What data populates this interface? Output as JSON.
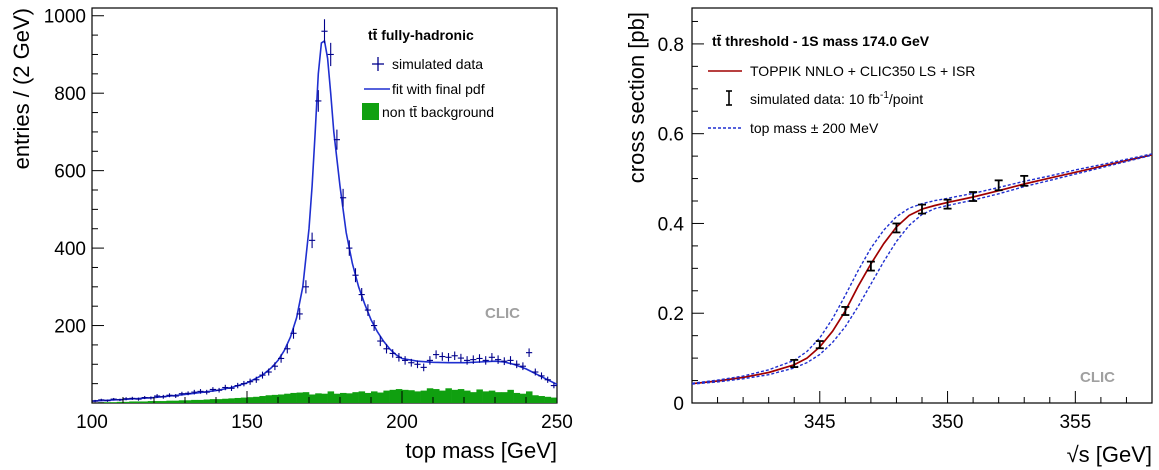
{
  "chart_data": [
    {
      "type": "histogram-fit",
      "title": "tt̄ fully-hadronic",
      "xlabel": "top mass [GeV]",
      "ylabel": "entries / (2 GeV)",
      "xlim": [
        100,
        250
      ],
      "ylim": [
        0,
        1020
      ],
      "xticks": [
        100,
        150,
        200,
        250
      ],
      "yticks": [
        200,
        400,
        600,
        800,
        1000
      ],
      "watermark": "CLIC",
      "legend": {
        "placement": "top-right",
        "entries": [
          {
            "label": "simulated data",
            "style": "marker",
            "color": "#00008b"
          },
          {
            "label": "fit with final pdf",
            "style": "line",
            "color": "#1f2fd0"
          },
          {
            "label": "non tt̄ background",
            "style": "fill",
            "color": "#10a010"
          }
        ]
      },
      "series": [
        {
          "name": "simulated data",
          "kind": "points",
          "color": "#00008b",
          "x": [
            101,
            103,
            105,
            107,
            109,
            111,
            113,
            115,
            117,
            119,
            121,
            123,
            125,
            127,
            129,
            131,
            133,
            135,
            137,
            139,
            141,
            143,
            145,
            147,
            149,
            151,
            153,
            155,
            157,
            159,
            161,
            163,
            165,
            167,
            169,
            171,
            173,
            175,
            177,
            179,
            181,
            183,
            185,
            187,
            189,
            191,
            193,
            195,
            197,
            199,
            201,
            203,
            205,
            207,
            209,
            211,
            213,
            215,
            217,
            219,
            221,
            223,
            225,
            227,
            229,
            231,
            233,
            235,
            237,
            239,
            241,
            243,
            245,
            247,
            249
          ],
          "y": [
            5,
            8,
            6,
            10,
            8,
            11,
            12,
            10,
            14,
            13,
            18,
            16,
            20,
            18,
            24,
            25,
            28,
            30,
            28,
            35,
            33,
            40,
            38,
            45,
            50,
            55,
            60,
            72,
            80,
            95,
            115,
            140,
            180,
            230,
            300,
            420,
            780,
            960,
            900,
            680,
            530,
            400,
            330,
            280,
            240,
            200,
            160,
            140,
            128,
            118,
            110,
            104,
            100,
            92,
            110,
            125,
            120,
            118,
            122,
            116,
            110,
            112,
            115,
            110,
            118,
            112,
            108,
            110,
            100,
            95,
            130,
            80,
            70,
            60,
            45
          ],
          "yerr": [
            3,
            3,
            3,
            3,
            3,
            4,
            4,
            4,
            4,
            4,
            5,
            5,
            5,
            5,
            5,
            5,
            6,
            6,
            6,
            6,
            6,
            7,
            7,
            7,
            7,
            8,
            8,
            9,
            9,
            10,
            11,
            12,
            14,
            15,
            17,
            20,
            28,
            31,
            30,
            26,
            23,
            20,
            18,
            17,
            15,
            14,
            13,
            12,
            11,
            11,
            11,
            10,
            10,
            10,
            11,
            11,
            11,
            11,
            11,
            11,
            11,
            11,
            11,
            11,
            11,
            11,
            10,
            11,
            10,
            10,
            11,
            9,
            9,
            8,
            7
          ]
        },
        {
          "name": "fit with final pdf",
          "kind": "line",
          "color": "#1f2fd0",
          "x": [
            100,
            110,
            120,
            130,
            140,
            145,
            150,
            155,
            158,
            160,
            162,
            164,
            166,
            168,
            170,
            171,
            172,
            173,
            174,
            175,
            176,
            177,
            178,
            180,
            182,
            184,
            186,
            188,
            190,
            192,
            194,
            196,
            198,
            200,
            205,
            210,
            215,
            220,
            225,
            230,
            233,
            236,
            240,
            245,
            250
          ],
          "y": [
            5,
            9,
            14,
            22,
            32,
            40,
            52,
            72,
            92,
            110,
            135,
            170,
            220,
            300,
            450,
            560,
            700,
            850,
            930,
            935,
            890,
            800,
            700,
            560,
            440,
            360,
            300,
            255,
            215,
            185,
            160,
            140,
            125,
            115,
            108,
            105,
            104,
            104,
            106,
            108,
            106,
            100,
            88,
            68,
            48
          ]
        },
        {
          "name": "non tt̄ background",
          "kind": "bars",
          "color": "#10a010",
          "bin_width": 2,
          "x": [
            101,
            103,
            105,
            107,
            109,
            111,
            113,
            115,
            117,
            119,
            121,
            123,
            125,
            127,
            129,
            131,
            133,
            135,
            137,
            139,
            141,
            143,
            145,
            147,
            149,
            151,
            153,
            155,
            157,
            159,
            161,
            163,
            165,
            167,
            169,
            171,
            173,
            175,
            177,
            179,
            181,
            183,
            185,
            187,
            189,
            191,
            193,
            195,
            197,
            199,
            201,
            203,
            205,
            207,
            209,
            211,
            213,
            215,
            217,
            219,
            221,
            223,
            225,
            227,
            229,
            231,
            233,
            235,
            237,
            239,
            241,
            243,
            245,
            247,
            249
          ],
          "y": [
            1,
            2,
            2,
            2,
            3,
            3,
            4,
            4,
            4,
            5,
            5,
            5,
            6,
            6,
            7,
            7,
            8,
            8,
            9,
            10,
            10,
            11,
            12,
            13,
            14,
            15,
            16,
            18,
            20,
            21,
            22,
            24,
            26,
            27,
            28,
            22,
            25,
            24,
            30,
            24,
            26,
            25,
            28,
            30,
            26,
            30,
            27,
            32,
            34,
            36,
            34,
            33,
            30,
            32,
            38,
            36,
            32,
            38,
            34,
            36,
            32,
            28,
            35,
            30,
            32,
            28,
            28,
            34,
            26,
            24,
            30,
            20,
            18,
            16,
            14
          ]
        }
      ]
    },
    {
      "type": "line",
      "title": "tt̄ threshold - 1S mass 174.0 GeV",
      "xlabel": "√s [GeV]",
      "ylabel": "cross section [pb]",
      "xlim": [
        340,
        358
      ],
      "ylim": [
        0,
        0.88
      ],
      "xticks": [
        345,
        350,
        355
      ],
      "yticks": [
        0,
        0.2,
        0.4,
        0.6,
        0.8
      ],
      "watermark": "CLIC",
      "legend": {
        "placement": "top-left",
        "entries": [
          {
            "label": "TOPPIK NNLO + CLIC350 LS + ISR",
            "style": "line",
            "color": "#a00000"
          },
          {
            "label_main": "simulated data: 10 fb",
            "label_sup": "-1",
            "label_tail": "/point",
            "style": "errorbar",
            "color": "#000000"
          },
          {
            "label": "top mass ± 200 MeV",
            "style": "dashed",
            "color": "#1f2fd0"
          }
        ]
      },
      "series": [
        {
          "name": "TOPPIK NNLO + CLIC350 LS + ISR",
          "kind": "line",
          "color": "#a00000",
          "x": [
            340,
            341,
            342,
            343,
            344,
            344.5,
            345,
            345.5,
            346,
            346.5,
            347,
            347.5,
            348,
            348.5,
            349,
            349.5,
            350,
            351,
            352,
            353,
            354,
            355,
            356,
            357,
            358
          ],
          "y": [
            0.043,
            0.049,
            0.057,
            0.068,
            0.085,
            0.1,
            0.125,
            0.16,
            0.205,
            0.26,
            0.31,
            0.355,
            0.392,
            0.418,
            0.432,
            0.44,
            0.447,
            0.459,
            0.473,
            0.488,
            0.501,
            0.514,
            0.527,
            0.54,
            0.553
          ]
        },
        {
          "name": "top mass + 200 MeV",
          "kind": "line",
          "dashed": true,
          "color": "#1f2fd0",
          "x": [
            340,
            341,
            342,
            343,
            344,
            344.5,
            345,
            345.5,
            346,
            346.5,
            347,
            347.5,
            348,
            348.5,
            349,
            349.5,
            350,
            351,
            352,
            353,
            354,
            355,
            356,
            357,
            358
          ],
          "y": [
            0.042,
            0.047,
            0.054,
            0.063,
            0.078,
            0.09,
            0.108,
            0.135,
            0.17,
            0.215,
            0.265,
            0.315,
            0.36,
            0.396,
            0.42,
            0.433,
            0.44,
            0.452,
            0.466,
            0.482,
            0.496,
            0.51,
            0.524,
            0.538,
            0.552
          ]
        },
        {
          "name": "top mass - 200 MeV",
          "kind": "line",
          "dashed": true,
          "color": "#1f2fd0",
          "x": [
            340,
            341,
            342,
            343,
            344,
            344.5,
            345,
            345.5,
            346,
            346.5,
            347,
            347.5,
            348,
            348.5,
            349,
            349.5,
            350,
            351,
            352,
            353,
            354,
            355,
            356,
            357,
            358
          ],
          "y": [
            0.044,
            0.051,
            0.06,
            0.074,
            0.095,
            0.115,
            0.145,
            0.188,
            0.24,
            0.295,
            0.345,
            0.385,
            0.415,
            0.434,
            0.444,
            0.451,
            0.456,
            0.467,
            0.48,
            0.494,
            0.506,
            0.519,
            0.531,
            0.543,
            0.555
          ]
        },
        {
          "name": "simulated data: 10 fb-1/point",
          "kind": "points",
          "color": "#000000",
          "x": [
            344,
            345,
            346,
            347,
            348,
            349,
            350,
            351,
            352,
            353
          ],
          "y": [
            0.088,
            0.13,
            0.205,
            0.305,
            0.39,
            0.432,
            0.443,
            0.46,
            0.485,
            0.495
          ],
          "yerr": [
            0.008,
            0.008,
            0.009,
            0.01,
            0.01,
            0.01,
            0.01,
            0.01,
            0.011,
            0.011
          ]
        }
      ]
    }
  ]
}
